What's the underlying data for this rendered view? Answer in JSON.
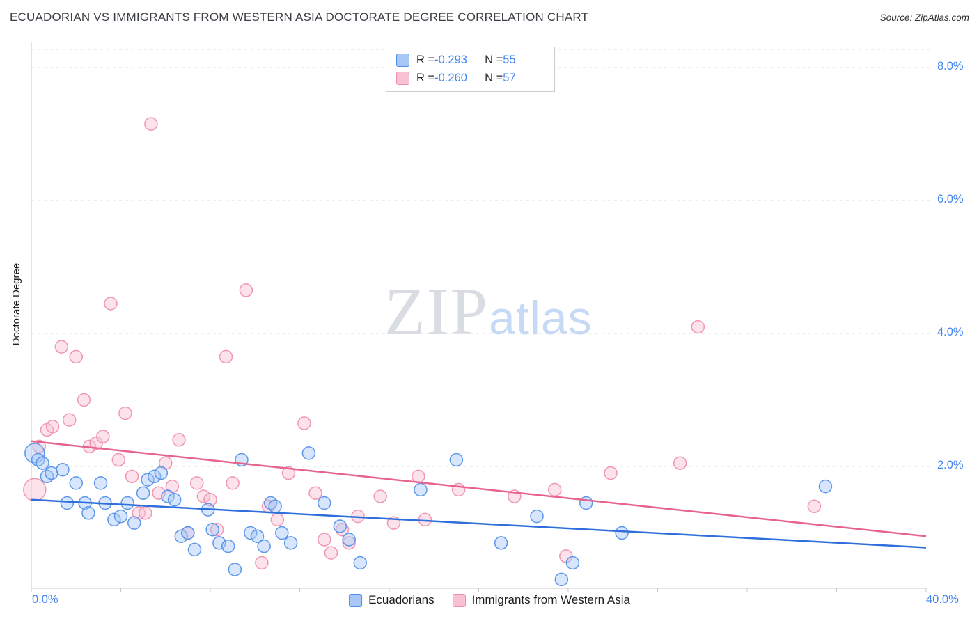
{
  "header": {
    "title": "ECUADORIAN VS IMMIGRANTS FROM WESTERN ASIA DOCTORATE DEGREE CORRELATION CHART",
    "source": "Source: ZipAtlas.com"
  },
  "watermark": {
    "part1": "ZIP",
    "part2": "atlas"
  },
  "axes": {
    "y_label": "Doctorate Degree",
    "x_min_label": "0.0%",
    "x_max_label": "40.0%",
    "y_ticks": [
      {
        "value": 8,
        "label": "8.0%"
      },
      {
        "value": 6,
        "label": "6.0%"
      },
      {
        "value": 4,
        "label": "4.0%"
      },
      {
        "value": 2,
        "label": "2.0%"
      }
    ]
  },
  "legend_box": {
    "rows": [
      {
        "r_label": "R = ",
        "r_value": "-0.293",
        "n_label": "N = ",
        "n_value": "55",
        "swatch_fill": "#a7c7f9",
        "swatch_stroke": "#4e8de8"
      },
      {
        "r_label": "R = ",
        "r_value": "-0.260",
        "n_label": "N = ",
        "n_value": "57",
        "swatch_fill": "#f9c2d2",
        "swatch_stroke": "#f08cac"
      }
    ]
  },
  "bottom_legend": {
    "items": [
      {
        "label": "Ecuadorians",
        "fill": "#a7c7f9",
        "stroke": "#4e8de8"
      },
      {
        "label": "Immigrants from Western Asia",
        "fill": "#f9c2d2",
        "stroke": "#f08cac"
      }
    ]
  },
  "chart_data": {
    "type": "scatter",
    "title": "ECUADORIAN VS IMMIGRANTS FROM WESTERN ASIA DOCTORATE DEGREE CORRELATION CHART",
    "xlabel": "",
    "ylabel": "Doctorate Degree",
    "x_range": [
      0,
      40
    ],
    "y_range": [
      0,
      8.4
    ],
    "y_ticks": [
      2,
      4,
      6,
      8
    ],
    "grid": true,
    "legend_position": "bottom",
    "series": [
      {
        "id": "ecuadorians",
        "name": "Ecuadorians",
        "R": -0.293,
        "N": 55,
        "fill": "#a7c7f9",
        "stroke": "#4e8de8",
        "trend_color": "#2e6fdb",
        "trend": {
          "x": [
            0,
            40
          ],
          "y": [
            1.5,
            0.78
          ]
        },
        "points": [
          [
            0.15,
            2.2,
            14
          ],
          [
            0.3,
            2.1
          ],
          [
            0.5,
            2.05
          ],
          [
            0.7,
            1.85
          ],
          [
            0.9,
            1.9
          ],
          [
            1.4,
            1.95
          ],
          [
            1.6,
            1.45
          ],
          [
            2.0,
            1.75
          ],
          [
            2.4,
            1.45
          ],
          [
            2.55,
            1.3
          ],
          [
            3.1,
            1.75
          ],
          [
            3.3,
            1.45
          ],
          [
            3.7,
            1.2
          ],
          [
            4.0,
            1.25
          ],
          [
            4.3,
            1.45
          ],
          [
            4.6,
            1.15
          ],
          [
            5.0,
            1.6
          ],
          [
            5.2,
            1.8
          ],
          [
            5.5,
            1.85
          ],
          [
            5.8,
            1.9
          ],
          [
            6.1,
            1.55
          ],
          [
            6.4,
            1.5
          ],
          [
            6.7,
            0.95
          ],
          [
            7.0,
            1.0
          ],
          [
            7.3,
            0.75
          ],
          [
            7.9,
            1.35
          ],
          [
            8.1,
            1.05
          ],
          [
            8.4,
            0.85
          ],
          [
            8.8,
            0.8
          ],
          [
            9.1,
            0.45
          ],
          [
            9.4,
            2.1
          ],
          [
            9.8,
            1.0
          ],
          [
            10.1,
            0.95
          ],
          [
            10.4,
            0.8
          ],
          [
            10.7,
            1.45
          ],
          [
            10.9,
            1.4
          ],
          [
            11.2,
            1.0
          ],
          [
            11.6,
            0.85
          ],
          [
            12.4,
            2.2
          ],
          [
            13.1,
            1.45
          ],
          [
            13.8,
            1.1
          ],
          [
            14.2,
            0.9
          ],
          [
            14.7,
            0.55
          ],
          [
            17.4,
            1.65
          ],
          [
            19.0,
            2.1
          ],
          [
            21.0,
            0.85
          ],
          [
            22.6,
            1.25
          ],
          [
            23.7,
            0.3
          ],
          [
            24.2,
            0.55
          ],
          [
            24.8,
            1.45
          ],
          [
            26.4,
            1.0
          ],
          [
            35.5,
            1.7
          ]
        ]
      },
      {
        "id": "western-asia",
        "name": "Immigrants from Western Asia",
        "R": -0.26,
        "N": 57,
        "fill": "#f9c2d2",
        "stroke": "#f08cac",
        "trend_color": "#e8638c",
        "trend": {
          "x": [
            0,
            40
          ],
          "y": [
            2.38,
            0.95
          ]
        },
        "points": [
          [
            0.15,
            1.65,
            16
          ],
          [
            0.35,
            2.3
          ],
          [
            0.7,
            2.55
          ],
          [
            0.95,
            2.6
          ],
          [
            1.35,
            3.8
          ],
          [
            1.7,
            2.7
          ],
          [
            2.0,
            3.65
          ],
          [
            2.35,
            3.0
          ],
          [
            2.6,
            2.3
          ],
          [
            2.9,
            2.35
          ],
          [
            3.2,
            2.45
          ],
          [
            3.55,
            4.45
          ],
          [
            3.9,
            2.1
          ],
          [
            4.2,
            2.8
          ],
          [
            4.5,
            1.85
          ],
          [
            4.8,
            1.3
          ],
          [
            5.1,
            1.3
          ],
          [
            5.35,
            7.15
          ],
          [
            5.7,
            1.6
          ],
          [
            6.0,
            2.05
          ],
          [
            6.3,
            1.7
          ],
          [
            6.6,
            2.4
          ],
          [
            7.0,
            1.0
          ],
          [
            7.4,
            1.75
          ],
          [
            7.7,
            1.55
          ],
          [
            8.0,
            1.5
          ],
          [
            8.3,
            1.05
          ],
          [
            8.7,
            3.65
          ],
          [
            9.0,
            1.75
          ],
          [
            9.6,
            4.65
          ],
          [
            10.3,
            0.55
          ],
          [
            10.6,
            1.4
          ],
          [
            11.0,
            1.2
          ],
          [
            11.5,
            1.9
          ],
          [
            12.2,
            2.65
          ],
          [
            12.7,
            1.6
          ],
          [
            13.1,
            0.9
          ],
          [
            13.4,
            0.7
          ],
          [
            13.9,
            1.05
          ],
          [
            14.2,
            0.85
          ],
          [
            14.6,
            1.25
          ],
          [
            15.6,
            1.55
          ],
          [
            16.2,
            1.15
          ],
          [
            17.3,
            1.85
          ],
          [
            17.6,
            1.2
          ],
          [
            19.1,
            1.65
          ],
          [
            21.6,
            1.55
          ],
          [
            23.4,
            1.65
          ],
          [
            23.9,
            0.65
          ],
          [
            25.9,
            1.9
          ],
          [
            29.0,
            2.05
          ],
          [
            29.8,
            4.1
          ],
          [
            35.0,
            1.4
          ]
        ]
      }
    ]
  }
}
